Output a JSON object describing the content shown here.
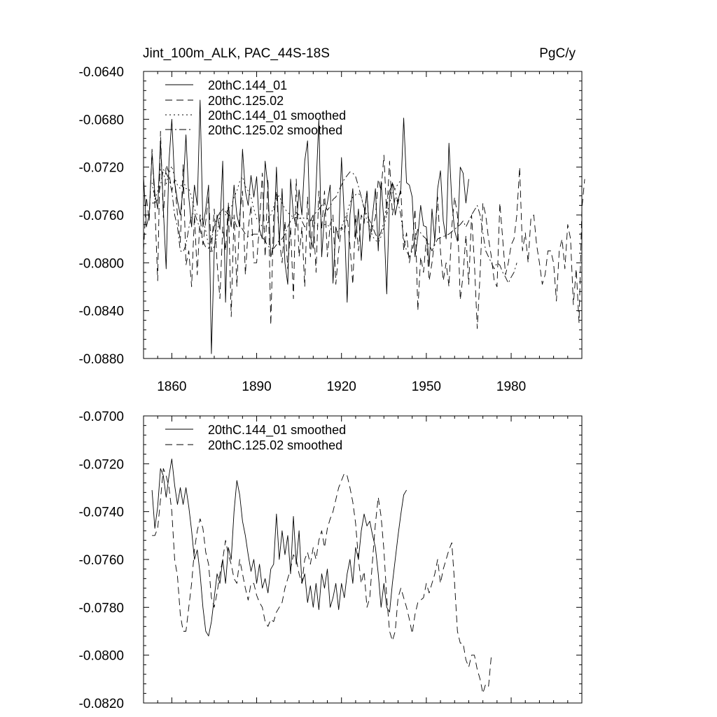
{
  "chart_data": [
    {
      "type": "line",
      "title_left": "Jint_100m_ALK, PAC_44S-18S",
      "title_right": "PgC/y",
      "xlim": [
        1850,
        2005
      ],
      "ylim": [
        -0.088,
        -0.064
      ],
      "yticks": [
        -0.064,
        -0.068,
        -0.072,
        -0.076,
        -0.08,
        -0.084,
        -0.088
      ],
      "ytick_labels": [
        "-0.0640",
        "-0.0680",
        "-0.0720",
        "-0.0760",
        "-0.0800",
        "-0.0840",
        "-0.0880"
      ],
      "xticks": [
        1860,
        1890,
        1920,
        1950,
        1980
      ],
      "xtick_labels": [
        "1860",
        "1890",
        "1920",
        "1950",
        "1980"
      ],
      "legend_position": "top-left",
      "series": [
        {
          "name": "20thC.144_01",
          "style": "solid",
          "x_start": 1850,
          "values": [
            -0.0728,
            -0.077,
            -0.076,
            -0.0708,
            -0.0742,
            -0.0755,
            -0.0698,
            -0.0755,
            -0.0805,
            -0.0715,
            -0.068,
            -0.0733,
            -0.0748,
            -0.076,
            -0.0738,
            -0.0693,
            -0.0745,
            -0.077,
            -0.0735,
            -0.0752,
            -0.0664,
            -0.077,
            -0.0755,
            -0.0735,
            -0.0876,
            -0.079,
            -0.076,
            -0.0772,
            -0.0715,
            -0.0833,
            -0.0752,
            -0.077,
            -0.0735,
            -0.076,
            -0.077,
            -0.0705,
            -0.074,
            -0.0752,
            -0.0727,
            -0.0745,
            -0.0728,
            -0.0772,
            -0.078,
            -0.0715,
            -0.0737,
            -0.0795,
            -0.0785,
            -0.072,
            -0.0785,
            -0.0738,
            -0.08,
            -0.0818,
            -0.073,
            -0.076,
            -0.077,
            -0.0739,
            -0.076,
            -0.0715,
            -0.0698,
            -0.0778,
            -0.0788,
            -0.0737,
            -0.068,
            -0.0795,
            -0.076,
            -0.075,
            -0.0735,
            -0.0817,
            -0.077,
            -0.078,
            -0.0712,
            -0.0762,
            -0.0833,
            -0.076,
            -0.0738,
            -0.078,
            -0.0755,
            -0.0798,
            -0.076,
            -0.074,
            -0.0782,
            -0.076,
            -0.0738,
            -0.079,
            -0.0732,
            -0.0766,
            -0.0826,
            -0.0745,
            -0.0733,
            -0.076,
            -0.0748,
            -0.0738,
            -0.0679,
            -0.0733,
            -0.0735,
            -0.0745,
            -0.0795,
            -0.0778,
            -0.0752,
            -0.0769,
            -0.077,
            -0.0803,
            -0.0755,
            -0.0782,
            -0.0738,
            -0.0723,
            -0.0765,
            -0.078,
            -0.07,
            -0.0748,
            -0.0773,
            -0.0782,
            -0.072,
            -0.0725,
            -0.075,
            -0.073
          ]
        },
        {
          "name": "20thC.125.02",
          "style": "dashed",
          "x_start": 1850,
          "values": [
            -0.079,
            -0.0745,
            -0.0765,
            -0.0705,
            -0.0752,
            -0.0815,
            -0.069,
            -0.0762,
            -0.0718,
            -0.0725,
            -0.074,
            -0.073,
            -0.076,
            -0.0783,
            -0.0718,
            -0.0802,
            -0.079,
            -0.082,
            -0.076,
            -0.081,
            -0.076,
            -0.0785,
            -0.0765,
            -0.0745,
            -0.079,
            -0.0755,
            -0.08,
            -0.083,
            -0.077,
            -0.079,
            -0.075,
            -0.0845,
            -0.076,
            -0.082,
            -0.076,
            -0.074,
            -0.081,
            -0.0772,
            -0.0752,
            -0.08,
            -0.08,
            -0.0768,
            -0.0725,
            -0.0795,
            -0.073,
            -0.0852,
            -0.076,
            -0.074,
            -0.078,
            -0.08,
            -0.0765,
            -0.0805,
            -0.077,
            -0.083,
            -0.073,
            -0.0795,
            -0.077,
            -0.082,
            -0.0745,
            -0.0795,
            -0.076,
            -0.0808,
            -0.074,
            -0.0772,
            -0.074,
            -0.0795,
            -0.0768,
            -0.076,
            -0.0818,
            -0.079,
            -0.077,
            -0.0775,
            -0.076,
            -0.0785,
            -0.0818,
            -0.076,
            -0.079,
            -0.076,
            -0.0767,
            -0.074,
            -0.078,
            -0.077,
            -0.0762,
            -0.073,
            -0.074,
            -0.071,
            -0.076,
            -0.0715,
            -0.076,
            -0.0745,
            -0.075,
            -0.074,
            -0.079,
            -0.0775,
            -0.08,
            -0.0785,
            -0.0755,
            -0.084,
            -0.0795,
            -0.0808,
            -0.078,
            -0.0815,
            -0.08,
            -0.078,
            -0.0745,
            -0.079,
            -0.0815,
            -0.08,
            -0.082,
            -0.077,
            -0.0745,
            -0.076,
            -0.0831,
            -0.081,
            -0.0777,
            -0.0818,
            -0.076,
            -0.08,
            -0.0855,
            -0.081,
            -0.075,
            -0.076,
            -0.078,
            -0.0795,
            -0.0815,
            -0.082,
            -0.075,
            -0.078,
            -0.081,
            -0.08,
            -0.0785,
            -0.078,
            -0.076,
            -0.072,
            -0.079,
            -0.0775,
            -0.08,
            -0.0762,
            -0.076,
            -0.0785,
            -0.08,
            -0.0818,
            -0.081,
            -0.079,
            -0.079,
            -0.08,
            -0.0832,
            -0.079,
            -0.078,
            -0.0805,
            -0.0768,
            -0.078,
            -0.0835,
            -0.0805,
            -0.085,
            -0.0755,
            -0.073
          ]
        },
        {
          "name": "20thC.144_01 smoothed",
          "style": "dotted",
          "x_start": 1853,
          "values": [
            -0.0733,
            -0.0747,
            -0.074,
            -0.0722,
            -0.0725,
            -0.0734,
            -0.0725,
            -0.0719,
            -0.0729,
            -0.0735,
            -0.0738,
            -0.073,
            -0.0738,
            -0.0738,
            -0.0745,
            -0.0755,
            -0.076,
            -0.076,
            -0.0765,
            -0.0773,
            -0.0786,
            -0.0792,
            -0.0786,
            -0.0777,
            -0.076,
            -0.0755,
            -0.076,
            -0.0754,
            -0.0754,
            -0.0745,
            -0.074,
            -0.0732,
            -0.0728,
            -0.0736,
            -0.074,
            -0.0745,
            -0.0755,
            -0.0763,
            -0.0766,
            -0.077,
            -0.0772,
            -0.0766,
            -0.076,
            -0.0753,
            -0.0745,
            -0.0744,
            -0.075,
            -0.0755,
            -0.0758,
            -0.076,
            -0.0762,
            -0.0762,
            -0.0763,
            -0.0762,
            -0.0763,
            -0.0763,
            -0.0764,
            -0.0765,
            -0.0768,
            -0.077,
            -0.077,
            -0.0768,
            -0.0768,
            -0.0771,
            -0.0774,
            -0.0775,
            -0.0773,
            -0.077,
            -0.0764,
            -0.0758,
            -0.075,
            -0.0745,
            -0.0743,
            -0.0742,
            -0.0745,
            -0.0755,
            -0.0765,
            -0.077,
            -0.0778,
            -0.0781,
            -0.0783,
            -0.0778,
            -0.077,
            -0.076,
            -0.075,
            -0.0742,
            -0.0738,
            -0.0734,
            -0.0731
          ]
        },
        {
          "name": "20thC.125.02 smoothed",
          "style": "dashdot",
          "x_start": 1853,
          "values": [
            -0.075,
            -0.075,
            -0.0747,
            -0.0735,
            -0.0722,
            -0.0725,
            -0.073,
            -0.074,
            -0.076,
            -0.077,
            -0.079,
            -0.0791,
            -0.0785,
            -0.0771,
            -0.076,
            -0.0758,
            -0.0765,
            -0.0772,
            -0.0782,
            -0.0787,
            -0.0788,
            -0.078,
            -0.077,
            -0.0762,
            -0.0758,
            -0.0755,
            -0.0757,
            -0.076,
            -0.0761,
            -0.0764,
            -0.077,
            -0.0768,
            -0.0772,
            -0.0776,
            -0.0778,
            -0.0777,
            -0.0776,
            -0.0776,
            -0.0776,
            -0.0778,
            -0.0782,
            -0.0786,
            -0.0788,
            -0.0788,
            -0.0785,
            -0.0781,
            -0.078,
            -0.0776,
            -0.077,
            -0.0765,
            -0.0762,
            -0.0758,
            -0.076,
            -0.0765,
            -0.077,
            -0.0766,
            -0.0765,
            -0.076,
            -0.0758,
            -0.0755,
            -0.0752,
            -0.075,
            -0.0756,
            -0.0753,
            -0.0747,
            -0.0745,
            -0.074,
            -0.0735,
            -0.073,
            -0.0727,
            -0.0724,
            -0.0725,
            -0.0728,
            -0.0736,
            -0.0745,
            -0.0754,
            -0.076,
            -0.0765,
            -0.077,
            -0.0776,
            -0.078,
            -0.0774,
            -0.0766,
            -0.075,
            -0.074,
            -0.0733,
            -0.074,
            -0.075,
            -0.076,
            -0.078,
            -0.079,
            -0.0795,
            -0.079,
            -0.078,
            -0.0772,
            -0.0775,
            -0.0778,
            -0.078,
            -0.0785,
            -0.079,
            -0.0785,
            -0.078,
            -0.0779,
            -0.0778,
            -0.0777,
            -0.0776,
            -0.0774,
            -0.0772,
            -0.077,
            -0.0768,
            -0.0765,
            -0.077,
            -0.0765,
            -0.076,
            -0.0756,
            -0.0752,
            -0.076,
            -0.0775,
            -0.079,
            -0.0795,
            -0.08,
            -0.0805,
            -0.08,
            -0.0802,
            -0.0808,
            -0.0812,
            -0.0817,
            -0.0812,
            -0.0808,
            -0.08
          ]
        }
      ]
    },
    {
      "type": "line",
      "xlim": [
        1850,
        2005
      ],
      "ylim": [
        -0.082,
        -0.07
      ],
      "yticks": [
        -0.07,
        -0.072,
        -0.074,
        -0.076,
        -0.078,
        -0.08,
        -0.082
      ],
      "ytick_labels": [
        "-0.0700",
        "-0.0720",
        "-0.0740",
        "-0.0760",
        "-0.0780",
        "-0.0800",
        "-0.0820"
      ],
      "xticks": [
        1860,
        1890,
        1920,
        1950,
        1980
      ],
      "legend_position": "top-left",
      "series": [
        {
          "name": "20thC.144_01 smoothed",
          "style": "solid",
          "x_start": 1853,
          "values": [
            -0.0731,
            -0.0747,
            -0.0738,
            -0.0722,
            -0.0725,
            -0.0734,
            -0.0725,
            -0.0718,
            -0.0729,
            -0.0737,
            -0.073,
            -0.0737,
            -0.073,
            -0.0738,
            -0.0748,
            -0.076,
            -0.0756,
            -0.0766,
            -0.078,
            -0.079,
            -0.0792,
            -0.0786,
            -0.0776,
            -0.0766,
            -0.077,
            -0.076,
            -0.077,
            -0.0755,
            -0.076,
            -0.074,
            -0.0727,
            -0.0733,
            -0.0744,
            -0.075,
            -0.0758,
            -0.0765,
            -0.076,
            -0.077,
            -0.0762,
            -0.0772,
            -0.0768,
            -0.0774,
            -0.0764,
            -0.0762,
            -0.0741,
            -0.076,
            -0.0748,
            -0.0758,
            -0.075,
            -0.0766,
            -0.0742,
            -0.0762,
            -0.0748,
            -0.077,
            -0.0766,
            -0.0778,
            -0.0771,
            -0.078,
            -0.077,
            -0.0781,
            -0.0766,
            -0.0772,
            -0.0764,
            -0.078,
            -0.0776,
            -0.077,
            -0.0781,
            -0.077,
            -0.0776,
            -0.0766,
            -0.076,
            -0.077,
            -0.0755,
            -0.076,
            -0.0748,
            -0.0741,
            -0.0746,
            -0.0744,
            -0.075,
            -0.0755,
            -0.0766,
            -0.078,
            -0.077,
            -0.078,
            -0.0782,
            -0.077,
            -0.076,
            -0.075,
            -0.0741,
            -0.0733,
            -0.0731
          ]
        },
        {
          "name": "20thC.125.02 smoothed",
          "style": "dashed",
          "x_start": 1853,
          "values": [
            -0.075,
            -0.075,
            -0.0747,
            -0.0735,
            -0.0722,
            -0.0725,
            -0.073,
            -0.074,
            -0.076,
            -0.0767,
            -0.0783,
            -0.079,
            -0.079,
            -0.078,
            -0.077,
            -0.0756,
            -0.0748,
            -0.0743,
            -0.0747,
            -0.0757,
            -0.0762,
            -0.0776,
            -0.078,
            -0.0774,
            -0.0766,
            -0.076,
            -0.0752,
            -0.0758,
            -0.0762,
            -0.0768,
            -0.077,
            -0.076,
            -0.0766,
            -0.0772,
            -0.0777,
            -0.077,
            -0.077,
            -0.0775,
            -0.0778,
            -0.078,
            -0.0786,
            -0.0788,
            -0.0785,
            -0.0786,
            -0.0782,
            -0.078,
            -0.0778,
            -0.0772,
            -0.0768,
            -0.0764,
            -0.0758,
            -0.076,
            -0.0766,
            -0.077,
            -0.076,
            -0.0757,
            -0.0762,
            -0.0755,
            -0.076,
            -0.0752,
            -0.0748,
            -0.0755,
            -0.0747,
            -0.0743,
            -0.074,
            -0.0735,
            -0.073,
            -0.0727,
            -0.0724,
            -0.0725,
            -0.073,
            -0.0736,
            -0.0745,
            -0.076,
            -0.077,
            -0.0765,
            -0.078,
            -0.0776,
            -0.076,
            -0.0745,
            -0.0734,
            -0.0742,
            -0.0756,
            -0.0776,
            -0.079,
            -0.0794,
            -0.079,
            -0.0776,
            -0.0772,
            -0.0776,
            -0.078,
            -0.0785,
            -0.0791,
            -0.0783,
            -0.0778,
            -0.0777,
            -0.0776,
            -0.077,
            -0.0774,
            -0.077,
            -0.0766,
            -0.076,
            -0.077,
            -0.0764,
            -0.076,
            -0.0756,
            -0.0753,
            -0.077,
            -0.079,
            -0.0795,
            -0.0795,
            -0.0802,
            -0.0805,
            -0.08,
            -0.08,
            -0.0806,
            -0.081,
            -0.0816,
            -0.0812,
            -0.0813,
            -0.08
          ]
        }
      ]
    }
  ]
}
